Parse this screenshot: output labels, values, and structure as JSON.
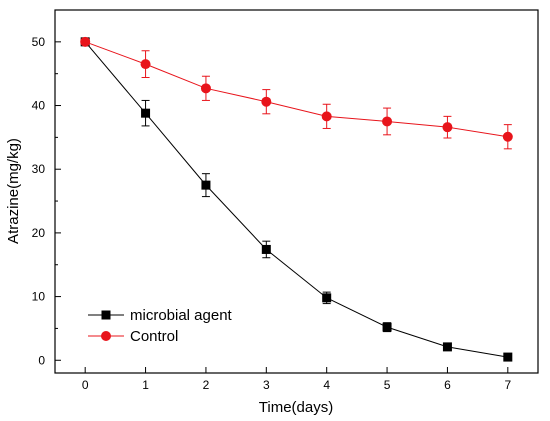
{
  "chart_data": {
    "type": "line",
    "title": "",
    "xlabel": "Time(days)",
    "ylabel": "Atrazine(mg/kg)",
    "x": [
      0,
      1,
      2,
      3,
      4,
      5,
      6,
      7
    ],
    "xlim": [
      -0.5,
      7.5
    ],
    "ylim": [
      -2,
      55
    ],
    "x_ticks": [
      0,
      1,
      2,
      3,
      4,
      5,
      6,
      7
    ],
    "y_ticks": [
      0,
      10,
      20,
      30,
      40,
      50
    ],
    "grid": false,
    "legend_position": "bottom-left",
    "series": [
      {
        "name": "microbial agent",
        "color": "#000000",
        "marker": "square",
        "values": [
          50.0,
          38.8,
          27.5,
          17.4,
          9.8,
          5.2,
          2.1,
          0.5
        ],
        "errors": [
          0.3,
          2.0,
          1.8,
          1.3,
          0.9,
          0.7,
          0.3,
          0.2
        ]
      },
      {
        "name": "Control",
        "color": "#e8141b",
        "marker": "circle",
        "values": [
          50.0,
          46.5,
          42.7,
          40.6,
          38.3,
          37.5,
          36.6,
          35.1
        ],
        "errors": [
          0.3,
          2.1,
          1.9,
          1.9,
          1.9,
          2.1,
          1.7,
          1.9
        ]
      }
    ]
  }
}
